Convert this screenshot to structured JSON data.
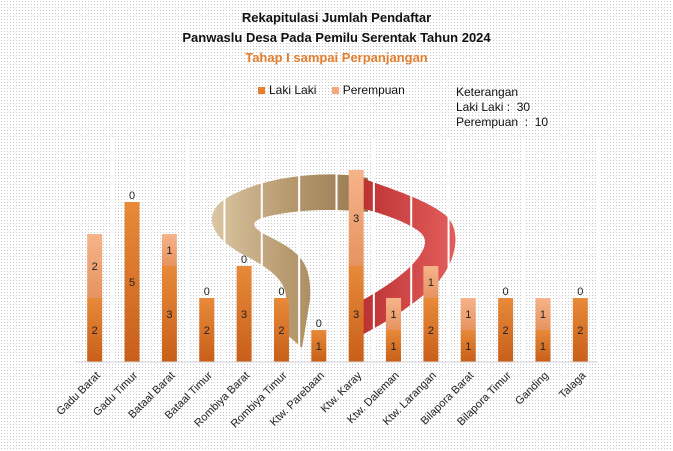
{
  "chart_data": {
    "type": "bar",
    "stacked": true,
    "title": "Rekapitulasi  Jumlah Pendaftar",
    "title_line2": "Panwaslu Desa Pada Pemilu Serentak Tahun 2024",
    "subtitle": "Tahap I sampai Perpanjangan",
    "categories": [
      "Gadu Barat",
      "Gadu Timur",
      "Bataal Barat",
      "Bataal Timur",
      "Rombiya Barat",
      "Rombiya Timur",
      "Ktw. Parebaan",
      "Ktw. Karay",
      "Ktw. Daleman",
      "Ktw. Larangan",
      "Bilapora Barat",
      "Bilapora Timur",
      "Ganding",
      "Talaga"
    ],
    "series": [
      {
        "name": "Laki Laki",
        "values": [
          2,
          5,
          3,
          2,
          3,
          2,
          1,
          3,
          1,
          2,
          1,
          2,
          1,
          2
        ],
        "color": "#e57f2e"
      },
      {
        "name": "Perempuan",
        "values": [
          2,
          0,
          1,
          0,
          0,
          0,
          0,
          3,
          1,
          1,
          1,
          0,
          1,
          0
        ],
        "color": "#f4a97a"
      }
    ],
    "ylim": [
      0,
      6
    ],
    "grid": false,
    "legend_position": "top",
    "annotation": {
      "heading": "Keterangan",
      "lines": [
        "Laki Laki :  30",
        "Perempuan  :  10"
      ]
    }
  }
}
